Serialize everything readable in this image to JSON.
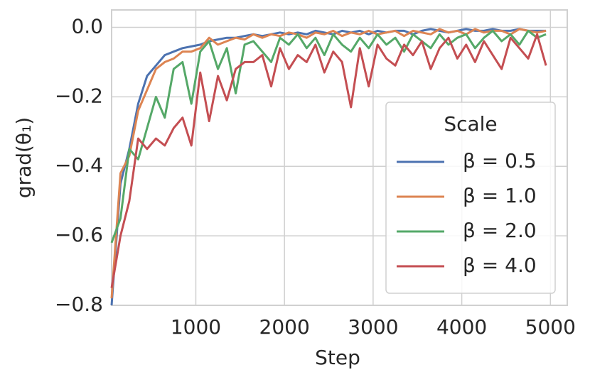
{
  "chart_data": {
    "type": "line",
    "ylabel": "grad(θ₁)",
    "xlabel": "Step",
    "legend_title": "Scale",
    "legend": "lower right",
    "grid": true,
    "x": [
      50,
      150,
      250,
      350,
      450,
      550,
      650,
      750,
      850,
      950,
      1050,
      1150,
      1250,
      1350,
      1450,
      1550,
      1650,
      1750,
      1850,
      1950,
      2050,
      2150,
      2250,
      2350,
      2450,
      2550,
      2650,
      2750,
      2850,
      2950,
      3050,
      3150,
      3250,
      3350,
      3450,
      3550,
      3650,
      3750,
      3850,
      3950,
      4050,
      4150,
      4250,
      4350,
      4450,
      4550,
      4650,
      4750,
      4850,
      4950
    ],
    "series": [
      {
        "name": "β = 0.5",
        "color": "#4c72b0",
        "values": [
          -0.8,
          -0.45,
          -0.35,
          -0.22,
          -0.14,
          -0.11,
          -0.08,
          -0.07,
          -0.06,
          -0.055,
          -0.05,
          -0.04,
          -0.035,
          -0.03,
          -0.03,
          -0.025,
          -0.02,
          -0.025,
          -0.02,
          -0.015,
          -0.02,
          -0.015,
          -0.02,
          -0.01,
          -0.015,
          -0.02,
          -0.01,
          -0.015,
          -0.01,
          -0.02,
          -0.01,
          -0.015,
          -0.01,
          -0.01,
          -0.02,
          -0.01,
          -0.005,
          -0.01,
          -0.015,
          -0.01,
          -0.005,
          -0.01,
          -0.01,
          -0.005,
          -0.01,
          -0.01,
          -0.005,
          -0.01,
          -0.01,
          -0.01
        ]
      },
      {
        "name": "β = 1.0",
        "color": "#dd8452",
        "values": [
          -0.78,
          -0.42,
          -0.37,
          -0.24,
          -0.18,
          -0.12,
          -0.1,
          -0.09,
          -0.07,
          -0.07,
          -0.06,
          -0.03,
          -0.05,
          -0.04,
          -0.03,
          -0.035,
          -0.02,
          -0.03,
          -0.02,
          -0.025,
          -0.015,
          -0.02,
          -0.03,
          -0.015,
          -0.02,
          -0.01,
          -0.025,
          -0.015,
          -0.02,
          -0.01,
          -0.02,
          -0.015,
          -0.01,
          -0.025,
          -0.01,
          -0.015,
          -0.02,
          -0.005,
          -0.015,
          -0.01,
          -0.02,
          -0.005,
          -0.015,
          -0.01,
          -0.01,
          -0.02,
          -0.005,
          -0.01,
          -0.015,
          -0.01
        ]
      },
      {
        "name": "β = 2.0",
        "color": "#55a868",
        "values": [
          -0.62,
          -0.55,
          -0.35,
          -0.38,
          -0.29,
          -0.2,
          -0.26,
          -0.12,
          -0.1,
          -0.22,
          -0.07,
          -0.04,
          -0.12,
          -0.06,
          -0.19,
          -0.05,
          -0.04,
          -0.07,
          -0.1,
          -0.03,
          -0.05,
          -0.02,
          -0.06,
          -0.03,
          -0.08,
          -0.02,
          -0.05,
          -0.07,
          -0.03,
          -0.06,
          -0.02,
          -0.05,
          -0.03,
          -0.07,
          -0.02,
          -0.04,
          -0.06,
          -0.02,
          -0.05,
          -0.03,
          -0.02,
          -0.06,
          -0.03,
          -0.01,
          -0.04,
          -0.02,
          -0.05,
          -0.01,
          -0.03,
          -0.02
        ]
      },
      {
        "name": "β = 4.0",
        "color": "#c44e52",
        "values": [
          -0.75,
          -0.6,
          -0.5,
          -0.32,
          -0.35,
          -0.32,
          -0.34,
          -0.29,
          -0.26,
          -0.34,
          -0.13,
          -0.27,
          -0.14,
          -0.21,
          -0.12,
          -0.1,
          -0.1,
          -0.08,
          -0.17,
          -0.06,
          -0.12,
          -0.08,
          -0.1,
          -0.05,
          -0.13,
          -0.07,
          -0.1,
          -0.23,
          -0.06,
          -0.17,
          -0.05,
          -0.09,
          -0.11,
          -0.05,
          -0.08,
          -0.04,
          -0.12,
          -0.06,
          -0.03,
          -0.09,
          -0.05,
          -0.1,
          -0.04,
          -0.08,
          -0.12,
          -0.03,
          -0.06,
          -0.09,
          -0.02,
          -0.11
        ]
      }
    ],
    "xlim": [
      50,
      5190
    ],
    "xticks": [
      1000,
      2000,
      3000,
      4000,
      5000
    ],
    "ylim": [
      -0.8,
      0.05
    ],
    "yticks": [
      {
        "value": -0.8,
        "label": "−0.8"
      },
      {
        "value": -0.6,
        "label": "−0.6"
      },
      {
        "value": -0.4,
        "label": "−0.4"
      },
      {
        "value": -0.2,
        "label": "−0.2"
      },
      {
        "value": 0,
        "label": "0.0"
      }
    ]
  }
}
